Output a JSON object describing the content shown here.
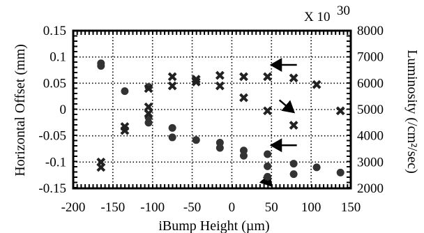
{
  "chart_data": {
    "type": "scatter",
    "title": "",
    "xlabel": "iBump Height (µm)",
    "ylabel": "Horizontal Offset (mm)",
    "y2label": "Luminosity (/cm²/sec)",
    "y2_scale_note": "X 10",
    "y2_scale_exponent": "30",
    "xlim": [
      -200,
      150
    ],
    "ylim": [
      -0.15,
      0.15
    ],
    "y2lim": [
      2000,
      8000
    ],
    "grid": true,
    "x_ticks": [
      "-200",
      "-150",
      "-100",
      "-50",
      "0",
      "50",
      "100",
      "150"
    ],
    "y_ticks": [
      "0.15",
      "0.1",
      "0.05",
      "0",
      "-0.05",
      "-0.1",
      "-0.15"
    ],
    "y2_ticks": [
      "8000",
      "7000",
      "6000",
      "5000",
      "4000",
      "3000",
      "2000"
    ],
    "series": [
      {
        "marker": "circle",
        "axis": "left",
        "color": "#333333",
        "points": [
          {
            "x": -165,
            "y": 0.088
          },
          {
            "x": -165,
            "y": 0.083
          },
          {
            "x": -135,
            "y": 0.035
          },
          {
            "x": -105,
            "y": 0.043
          },
          {
            "x": -105,
            "y": -0.015
          },
          {
            "x": -105,
            "y": -0.025
          },
          {
            "x": -75,
            "y": -0.035
          },
          {
            "x": -75,
            "y": -0.053
          },
          {
            "x": -45,
            "y": -0.058
          },
          {
            "x": -15,
            "y": -0.063
          },
          {
            "x": -15,
            "y": -0.073
          },
          {
            "x": 15,
            "y": -0.078
          },
          {
            "x": 15,
            "y": -0.088
          },
          {
            "x": 45,
            "y": -0.085
          },
          {
            "x": 45,
            "y": -0.108
          },
          {
            "x": 45,
            "y": -0.128
          },
          {
            "x": 78,
            "y": -0.103
          },
          {
            "x": 78,
            "y": -0.123
          },
          {
            "x": 107,
            "y": -0.11
          },
          {
            "x": 137,
            "y": -0.12
          }
        ]
      },
      {
        "marker": "cross",
        "axis": "right",
        "color": "#222222",
        "points": [
          {
            "x": -165,
            "y": 3000
          },
          {
            "x": -165,
            "y": 2800
          },
          {
            "x": -135,
            "y": 4350
          },
          {
            "x": -135,
            "y": 4200
          },
          {
            "x": -105,
            "y": 5800
          },
          {
            "x": -105,
            "y": 5100
          },
          {
            "x": -105,
            "y": 4850
          },
          {
            "x": -75,
            "y": 6250
          },
          {
            "x": -75,
            "y": 5900
          },
          {
            "x": -45,
            "y": 6150
          },
          {
            "x": -45,
            "y": 6050
          },
          {
            "x": -15,
            "y": 6300
          },
          {
            "x": -15,
            "y": 5900
          },
          {
            "x": 15,
            "y": 6250
          },
          {
            "x": 15,
            "y": 5450
          },
          {
            "x": 45,
            "y": 6250
          },
          {
            "x": 45,
            "y": 4950
          },
          {
            "x": 78,
            "y": 6200
          },
          {
            "x": 78,
            "y": 4400
          },
          {
            "x": 107,
            "y": 5950
          },
          {
            "x": 137,
            "y": 4950
          }
        ]
      }
    ],
    "annotations": [
      {
        "type": "arrow",
        "from": [
          82,
          0.085
        ],
        "to": [
          50,
          0.085
        ]
      },
      {
        "type": "arrow",
        "from": [
          60,
          0.018
        ],
        "to": [
          78,
          -0.005
        ]
      },
      {
        "type": "arrow",
        "from": [
          82,
          -0.068
        ],
        "to": [
          50,
          -0.068
        ]
      },
      {
        "type": "arrow",
        "from": [
          40,
          -0.128
        ],
        "to": [
          50,
          -0.145
        ]
      }
    ]
  }
}
